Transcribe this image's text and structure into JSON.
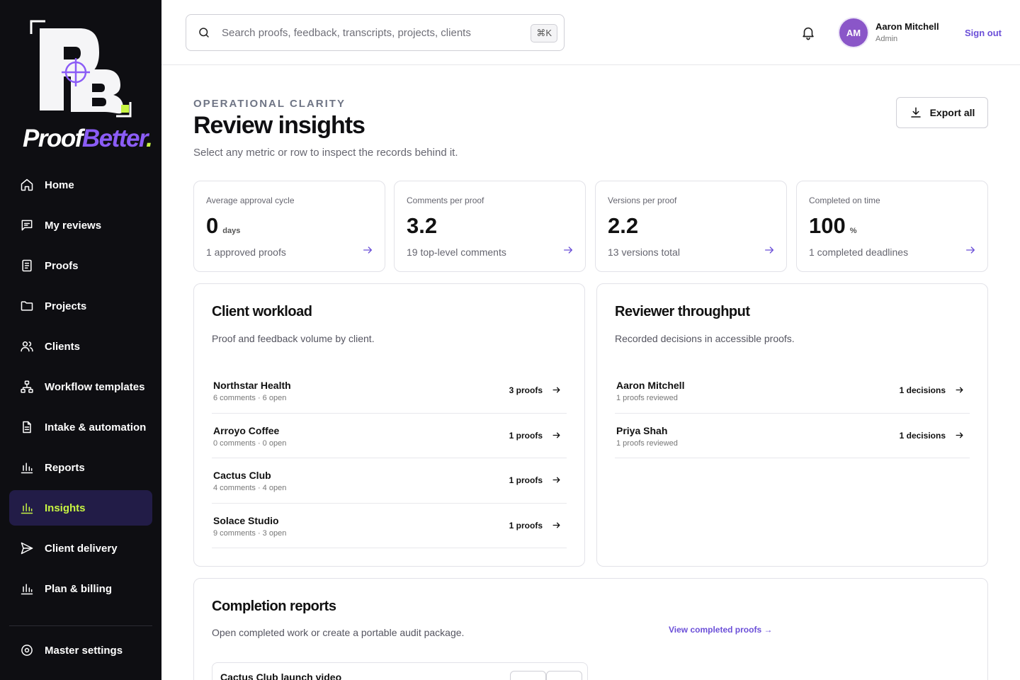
{
  "brand": {
    "name_part1": "Proof",
    "name_part2": "Better",
    "name_dot": ".",
    "monogram": "PB",
    "colors": {
      "accent": "#8b5cf6",
      "lime": "#c8f542",
      "sidebar": "#0e0e12",
      "active_bg": "#221c47"
    }
  },
  "sidebar": {
    "items": [
      {
        "label": "Home",
        "icon": "home-icon"
      },
      {
        "label": "My reviews",
        "icon": "message-square-icon"
      },
      {
        "label": "Proofs",
        "icon": "file-text-icon"
      },
      {
        "label": "Projects",
        "icon": "folder-icon"
      },
      {
        "label": "Clients",
        "icon": "users-icon"
      },
      {
        "label": "Workflow templates",
        "icon": "workflow-icon"
      },
      {
        "label": "Intake & automation",
        "icon": "file-form-icon"
      },
      {
        "label": "Reports",
        "icon": "bar-chart-icon"
      },
      {
        "label": "Insights",
        "icon": "bar-chart-icon",
        "active": true
      },
      {
        "label": "Client delivery",
        "icon": "send-icon"
      },
      {
        "label": "Plan & billing",
        "icon": "bar-chart-icon"
      }
    ],
    "bottom": {
      "label": "Master settings",
      "icon": "gear-icon"
    }
  },
  "topbar": {
    "search_placeholder": "Search proofs, feedback, transcripts, projects, clients",
    "search_shortcut": "⌘K",
    "user": {
      "initials": "AM",
      "name": "Aaron Mitchell",
      "role": "Admin"
    },
    "sign_out": "Sign out"
  },
  "header": {
    "eyebrow": "OPERATIONAL CLARITY",
    "title": "Review insights",
    "subtitle": "Select any metric or row to inspect the records behind it.",
    "export_label": "Export all"
  },
  "metrics": [
    {
      "label": "Average approval cycle",
      "value": "0",
      "unit": "days",
      "footer": "1 approved proofs"
    },
    {
      "label": "Comments per proof",
      "value": "3.2",
      "unit": "",
      "footer": "19 top-level comments"
    },
    {
      "label": "Versions per proof",
      "value": "2.2",
      "unit": "",
      "footer": "13 versions total"
    },
    {
      "label": "Completed on time",
      "value": "100",
      "unit": "%",
      "footer": "1 completed deadlines"
    }
  ],
  "client_workload": {
    "title": "Client workload",
    "subtitle": "Proof and feedback volume by client.",
    "rows": [
      {
        "name": "Northstar Health",
        "meta": "6 comments · 6 open",
        "count": "3 proofs"
      },
      {
        "name": "Arroyo Coffee",
        "meta": "0 comments · 0 open",
        "count": "1 proofs"
      },
      {
        "name": "Cactus Club",
        "meta": "4 comments · 4 open",
        "count": "1 proofs"
      },
      {
        "name": "Solace Studio",
        "meta": "9 comments · 3 open",
        "count": "1 proofs"
      }
    ]
  },
  "reviewer_throughput": {
    "title": "Reviewer throughput",
    "subtitle": "Recorded decisions in accessible proofs.",
    "rows": [
      {
        "name": "Aaron Mitchell",
        "meta": "1 proofs reviewed",
        "count": "1 decisions"
      },
      {
        "name": "Priya Shah",
        "meta": "1 proofs reviewed",
        "count": "1 decisions"
      }
    ]
  },
  "completion_reports": {
    "title": "Completion reports",
    "subtitle": "Open completed work or create a portable audit package.",
    "link": "View completed proofs →",
    "items": [
      {
        "title": "Cactus Club launch video"
      }
    ]
  }
}
